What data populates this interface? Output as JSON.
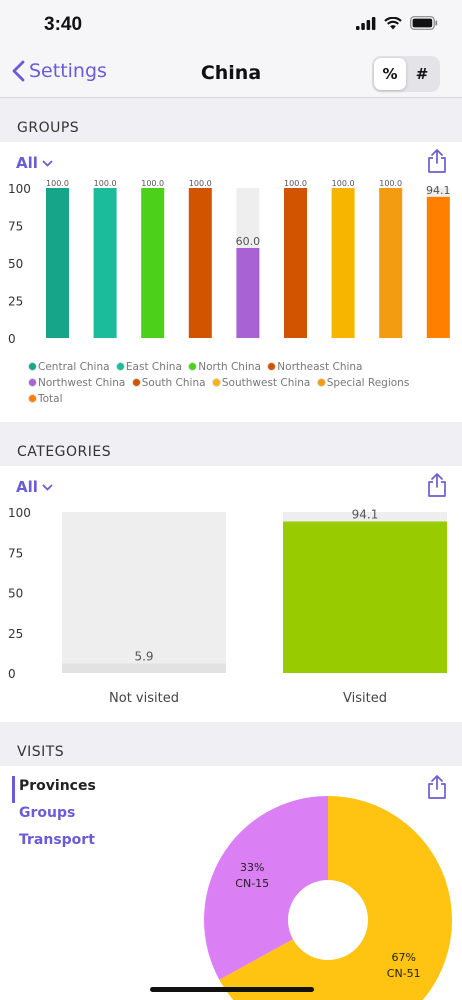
{
  "status": {
    "time": "3:40"
  },
  "nav": {
    "back_label": "Settings",
    "title": "China",
    "mode_percent": "%",
    "mode_count": "#"
  },
  "groups": {
    "header": "GROUPS",
    "filter_label": "All",
    "chart_data": {
      "type": "bar",
      "categories": [
        "Central China",
        "East China",
        "North China",
        "Northeast China",
        "Northwest China",
        "South China",
        "Southwest China",
        "Special Regions",
        "Total"
      ],
      "values": [
        100.0,
        100.0,
        100.0,
        100.0,
        60.0,
        100.0,
        100.0,
        100.0,
        94.1
      ],
      "value_labels": [
        "100.0",
        "100.0",
        "100.0",
        "100.0",
        "60.0",
        "100.0",
        "100.0",
        "100.0",
        "94.1"
      ],
      "colors": [
        "#17a589",
        "#1abc9c",
        "#4cd01a",
        "#d35400",
        "#a962d4",
        "#d35400",
        "#f7b500",
        "#f39c12",
        "#ff8000"
      ],
      "yticks": [
        "100",
        "75",
        "50",
        "25",
        "0"
      ],
      "ylim": [
        0,
        100
      ]
    }
  },
  "categories": {
    "header": "CATEGORIES",
    "filter_label": "All",
    "chart_data": {
      "type": "bar",
      "categories": [
        "Not visited",
        "Visited"
      ],
      "values": [
        5.9,
        94.1
      ],
      "value_labels": [
        "5.9",
        "94.1"
      ],
      "colors": [
        "#e2e2e2",
        "#99cc00"
      ],
      "yticks": [
        "100",
        "75",
        "50",
        "25",
        "0"
      ],
      "ylim": [
        0,
        100
      ]
    }
  },
  "visits": {
    "header": "VISITS",
    "nav_items": [
      "Provinces",
      "Groups",
      "Transport"
    ],
    "chart_data": {
      "type": "pie",
      "labels": [
        "CN-15",
        "CN-51"
      ],
      "percent_labels": [
        "33%",
        "67%"
      ],
      "values": [
        33,
        67
      ],
      "colors": [
        "#db7ff5",
        "#ffc312"
      ]
    }
  }
}
